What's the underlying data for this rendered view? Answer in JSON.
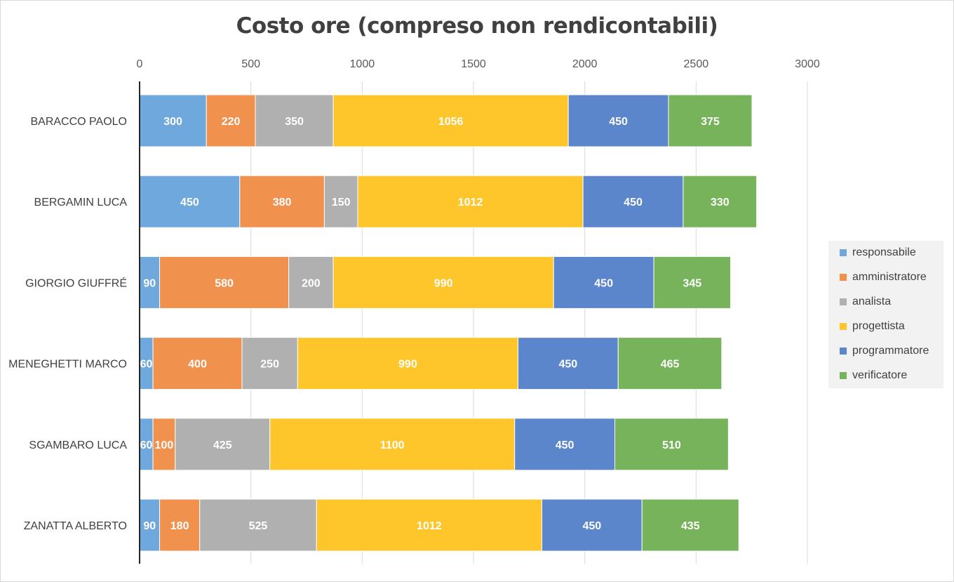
{
  "chart_data": {
    "type": "bar",
    "orientation": "horizontal",
    "stacked": true,
    "title": "Costo ore (compreso non rendicontabili)",
    "xlabel": "",
    "ylabel": "",
    "xlim": [
      0,
      3000
    ],
    "ticks": [
      "0",
      "500",
      "1000",
      "1500",
      "2000",
      "2500",
      "3000"
    ],
    "tick_values": [
      0,
      500,
      1000,
      1500,
      2000,
      2500,
      3000
    ],
    "grid": true,
    "legend_position": "right",
    "categories": [
      "BARACCO PAOLO",
      "BERGAMIN LUCA",
      "GIORGIO GIUFFRÉ",
      "MENEGHETTI MARCO",
      "SGAMBARO LUCA",
      "ZANATTA ALBERTO"
    ],
    "series": [
      {
        "name": "responsabile",
        "color": "#6fa8dc",
        "values": [
          300,
          450,
          90,
          60,
          60,
          90
        ]
      },
      {
        "name": "amministratore",
        "color": "#f0914e",
        "values": [
          220,
          380,
          580,
          400,
          100,
          180
        ]
      },
      {
        "name": "analista",
        "color": "#b0b0b0",
        "values": [
          350,
          150,
          200,
          250,
          425,
          525
        ]
      },
      {
        "name": "progettista",
        "color": "#fec62b",
        "values": [
          1056,
          1012,
          990,
          990,
          1100,
          1012
        ]
      },
      {
        "name": "programmatore",
        "color": "#5b86cc",
        "values": [
          450,
          450,
          450,
          450,
          450,
          450
        ]
      },
      {
        "name": "verificatore",
        "color": "#76b35a",
        "values": [
          375,
          330,
          345,
          465,
          510,
          435
        ]
      }
    ]
  }
}
